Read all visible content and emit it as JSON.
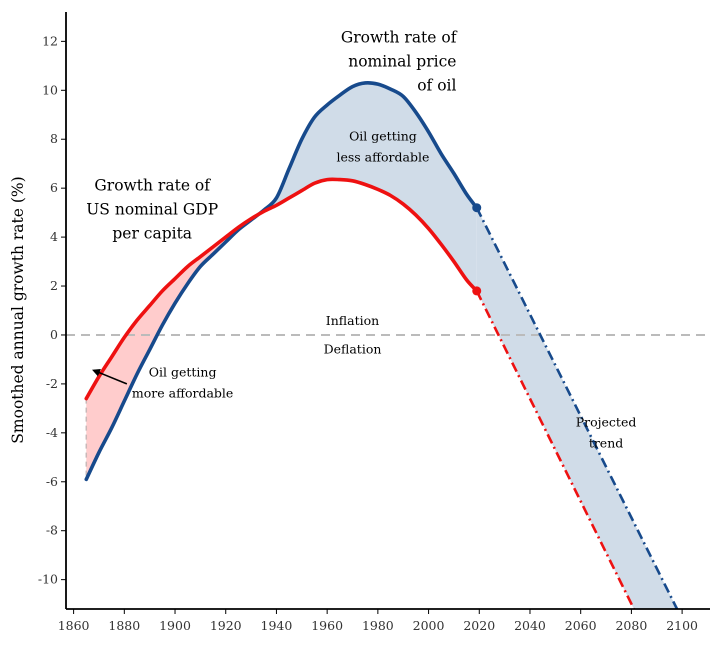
{
  "chart_data": {
    "type": "line",
    "title": "",
    "xlabel": "",
    "ylabel": "Smoothed annual growth rate (%)",
    "xlim": [
      1857,
      2111
    ],
    "ylim": [
      -11.2,
      13.2
    ],
    "x_ticks": [
      1860,
      1880,
      1900,
      1920,
      1940,
      1960,
      1980,
      2000,
      2020,
      2040,
      2060,
      2080,
      2100
    ],
    "y_ticks": [
      -10,
      -8,
      -6,
      -4,
      -2,
      0,
      2,
      4,
      6,
      8,
      10,
      12
    ],
    "grid": false,
    "reference_line": {
      "y": 0,
      "style": "dashed",
      "color": "#bbbbbb"
    },
    "colors": {
      "gdp": "#ee1111",
      "oil": "#174a8c",
      "fill_oil_above": "#d0dce8",
      "fill_gdp_above": "#ffcccc"
    },
    "series": [
      {
        "name": "Growth rate of US nominal GDP per capita",
        "color": "#ee1111",
        "x": [
          1865,
          1870,
          1875,
          1880,
          1885,
          1890,
          1895,
          1900,
          1905,
          1910,
          1915,
          1920,
          1925,
          1930,
          1935,
          1940,
          1945,
          1950,
          1955,
          1960,
          1965,
          1970,
          1975,
          1980,
          1985,
          1990,
          1995,
          2000,
          2005,
          2010,
          2015,
          2019
        ],
        "values": [
          -2.6,
          -1.7,
          -0.9,
          -0.1,
          0.6,
          1.2,
          1.8,
          2.3,
          2.8,
          3.2,
          3.6,
          4.0,
          4.4,
          4.75,
          5.05,
          5.3,
          5.6,
          5.9,
          6.2,
          6.35,
          6.35,
          6.3,
          6.15,
          5.95,
          5.7,
          5.35,
          4.9,
          4.35,
          3.7,
          3.0,
          2.25,
          1.8
        ]
      },
      {
        "name": "Growth rate of nominal price of oil",
        "color": "#174a8c",
        "x": [
          1865,
          1870,
          1875,
          1880,
          1885,
          1890,
          1895,
          1900,
          1905,
          1910,
          1915,
          1920,
          1925,
          1930,
          1935,
          1940,
          1945,
          1950,
          1955,
          1960,
          1965,
          1970,
          1975,
          1980,
          1985,
          1990,
          1995,
          2000,
          2005,
          2010,
          2015,
          2019
        ],
        "values": [
          -5.9,
          -4.8,
          -3.8,
          -2.7,
          -1.6,
          -0.6,
          0.4,
          1.3,
          2.1,
          2.8,
          3.3,
          3.8,
          4.3,
          4.7,
          5.1,
          5.6,
          6.8,
          8.0,
          8.9,
          9.4,
          9.8,
          10.15,
          10.3,
          10.25,
          10.05,
          9.75,
          9.1,
          8.3,
          7.4,
          6.6,
          5.75,
          5.2
        ]
      },
      {
        "name": "Projected trend (GDP)",
        "color": "#ee1111",
        "style": "dashdot",
        "x": [
          2019,
          2081
        ],
        "values": [
          1.8,
          -11.2
        ]
      },
      {
        "name": "Projected trend (oil)",
        "color": "#174a8c",
        "style": "dashdot",
        "x": [
          2019,
          2098
        ],
        "values": [
          5.2,
          -11.2
        ]
      }
    ],
    "markers": [
      {
        "x": 2019,
        "y": 1.8,
        "color": "#ee1111"
      },
      {
        "x": 2019,
        "y": 5.2,
        "color": "#174a8c"
      }
    ],
    "annotations": [
      {
        "lines": [
          "Growth rate of",
          "nominal price",
          "of oil"
        ],
        "x": 2011,
        "y": 11.95,
        "anchor": "end",
        "size": "large"
      },
      {
        "lines": [
          "Growth rate of",
          "US nominal GDP",
          "per capita"
        ],
        "x": 1891,
        "y": 5.9,
        "anchor": "middle",
        "size": "large"
      },
      {
        "lines": [
          "Oil getting",
          "less affordable"
        ],
        "x": 1982,
        "y": 7.95,
        "anchor": "middle",
        "size": "small"
      },
      {
        "lines": [
          "Oil getting",
          "more affordable"
        ],
        "x": 1903,
        "y": -1.7,
        "anchor": "middle",
        "size": "small"
      },
      {
        "lines": [
          "Inflation"
        ],
        "x": 1970,
        "y": 0.4,
        "anchor": "middle",
        "size": "small"
      },
      {
        "lines": [
          "Deflation"
        ],
        "x": 1970,
        "y": -0.75,
        "anchor": "middle",
        "size": "small"
      },
      {
        "lines": [
          "Projected",
          "trend"
        ],
        "x": 2070,
        "y": -3.75,
        "anchor": "middle",
        "size": "small"
      }
    ],
    "arrow": {
      "from": [
        1881,
        -2.0
      ],
      "to": [
        1868,
        -1.45
      ]
    }
  }
}
